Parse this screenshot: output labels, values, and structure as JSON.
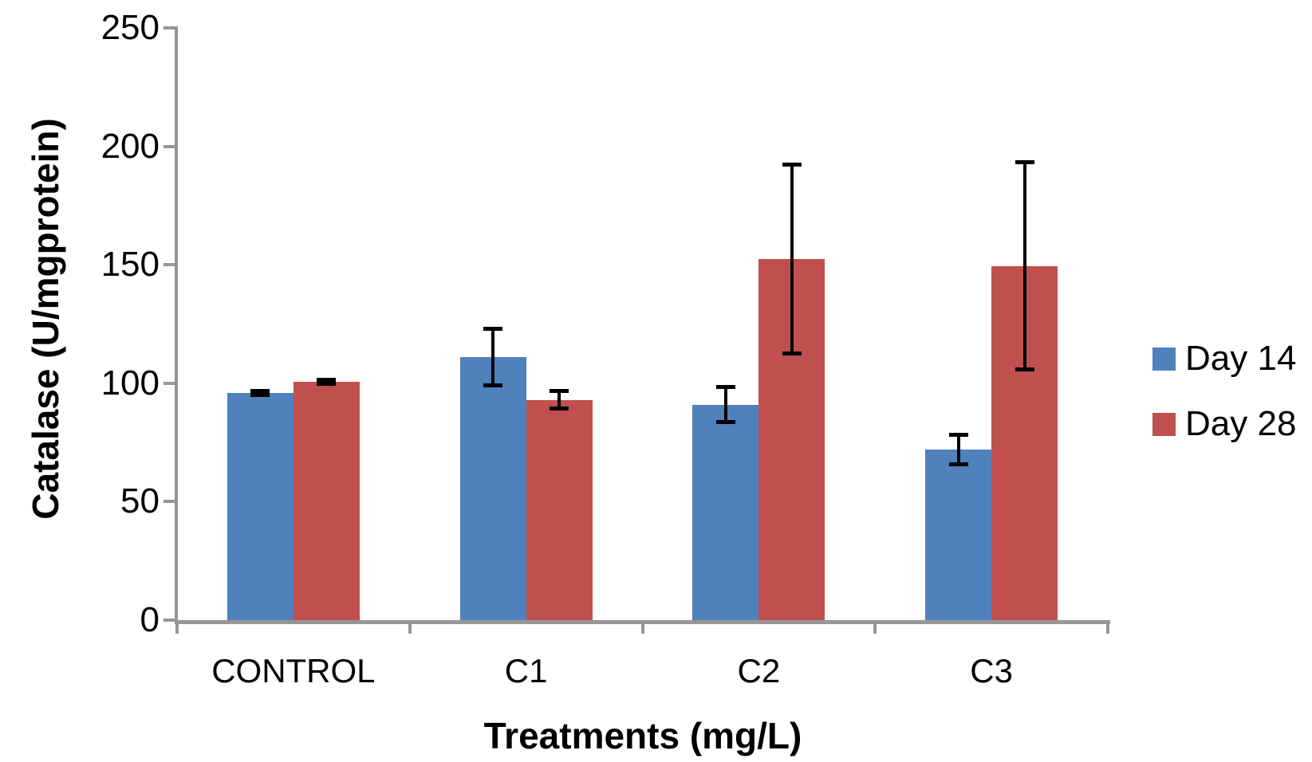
{
  "chart_data": {
    "type": "bar",
    "title": "",
    "categories": [
      "CONTROL",
      "C1",
      "C2",
      "C3"
    ],
    "series": [
      {
        "name": "Day 14",
        "color": "#4F81BD",
        "values": [
          96,
          111,
          91,
          72
        ],
        "errors": [
          1,
          12,
          7.5,
          6.5
        ]
      },
      {
        "name": "Day 28",
        "color": "#C0504D",
        "values": [
          100.5,
          93,
          152.5,
          149.5
        ],
        "errors": [
          1,
          4,
          40,
          44
        ]
      }
    ],
    "xlabel": "Treatments (mg/L)",
    "ylabel": "Catalase (U/mgprotein)",
    "ylim": [
      0,
      250
    ],
    "yticks": [
      0,
      50,
      100,
      150,
      200,
      250
    ],
    "grid": false,
    "legend_position": "right",
    "plot_background": "#ffffff",
    "axis_color": "#969696",
    "error_bar_color": "#000000",
    "text_color": "#000000"
  }
}
